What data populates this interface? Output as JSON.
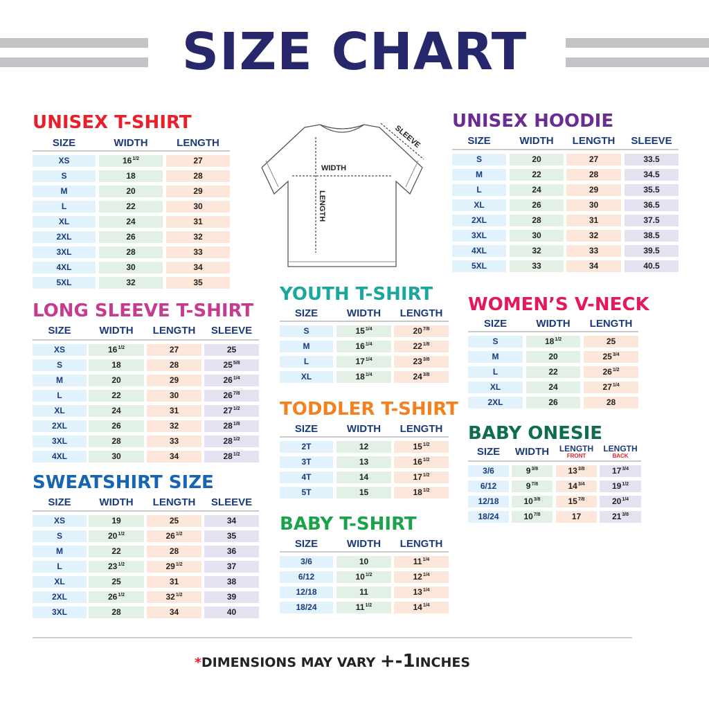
{
  "title": "SIZE CHART",
  "colors": {
    "title": "#27276b",
    "header": "#1b3a7a",
    "size_cell": "#e1f2fc",
    "width_cell": "#e2f0e6",
    "length_cell": "#fde6da",
    "sleeve_cell": "#e4e1f1"
  },
  "illustration": {
    "icon": "t-shirt-diagram",
    "width_label": "WIDTH",
    "length_label": "LENGTH",
    "sleeve_label": "SLEEVE"
  },
  "tables": [
    {
      "title": "UNISEX T-SHIRT",
      "color": "#e8202a",
      "columns": [
        {
          "label": "SIZE"
        },
        {
          "label": "WIDTH"
        },
        {
          "label": "LENGTH"
        }
      ],
      "rows": [
        [
          "XS",
          "16 1/2",
          "27"
        ],
        [
          "S",
          "18",
          "28"
        ],
        [
          "M",
          "20",
          "29"
        ],
        [
          "L",
          "22",
          "30"
        ],
        [
          "XL",
          "24",
          "31"
        ],
        [
          "2XL",
          "26",
          "32"
        ],
        [
          "3XL",
          "28",
          "33"
        ],
        [
          "4XL",
          "30",
          "34"
        ],
        [
          "5XL",
          "32",
          "35"
        ]
      ]
    },
    {
      "title": "LONG SLEEVE T-SHIRT",
      "color": "#c53b8e",
      "columns": [
        {
          "label": "SIZE"
        },
        {
          "label": "WIDTH"
        },
        {
          "label": "LENGTH"
        },
        {
          "label": "SLEEVE"
        }
      ],
      "rows": [
        [
          "XS",
          "16 1/2",
          "27",
          "25"
        ],
        [
          "S",
          "18",
          "28",
          "25 5/8"
        ],
        [
          "M",
          "20",
          "29",
          "26 1/4"
        ],
        [
          "L",
          "22",
          "30",
          "26 7/8"
        ],
        [
          "XL",
          "24",
          "31",
          "27 1/2"
        ],
        [
          "2XL",
          "26",
          "32",
          "28 1/8"
        ],
        [
          "3XL",
          "28",
          "33",
          "28 1/2"
        ],
        [
          "4XL",
          "30",
          "34",
          "28 1/2"
        ]
      ]
    },
    {
      "title": "SWEATSHIRT SIZE",
      "color": "#1565b0",
      "columns": [
        {
          "label": "SIZE"
        },
        {
          "label": "WIDTH"
        },
        {
          "label": "LENGTH"
        },
        {
          "label": "SLEEVE"
        }
      ],
      "rows": [
        [
          "XS",
          "19",
          "25",
          "34"
        ],
        [
          "S",
          "20 1/2",
          "26 1/2",
          "35"
        ],
        [
          "M",
          "22",
          "28",
          "36"
        ],
        [
          "L",
          "23 1/2",
          "29 1/2",
          "37"
        ],
        [
          "XL",
          "25",
          "31",
          "38"
        ],
        [
          "2XL",
          "26 1/2",
          "32 1/2",
          "39"
        ],
        [
          "3XL",
          "28",
          "34",
          "40"
        ]
      ]
    },
    {
      "title": "UNISEX HOODIE",
      "color": "#6a2c91",
      "columns": [
        {
          "label": "SIZE"
        },
        {
          "label": "WIDTH"
        },
        {
          "label": "LENGTH"
        },
        {
          "label": "SLEEVE"
        }
      ],
      "rows": [
        [
          "S",
          "20",
          "27",
          "33.5"
        ],
        [
          "M",
          "22",
          "28",
          "34.5"
        ],
        [
          "L",
          "24",
          "29",
          "35.5"
        ],
        [
          "XL",
          "26",
          "30",
          "36.5"
        ],
        [
          "2XL",
          "28",
          "31",
          "37.5"
        ],
        [
          "3XL",
          "30",
          "32",
          "38.5"
        ],
        [
          "4XL",
          "32",
          "33",
          "39.5"
        ],
        [
          "5XL",
          "33",
          "34",
          "40.5"
        ]
      ]
    },
    {
      "title": "YOUTH T-SHIRT",
      "color": "#1aa79c",
      "columns": [
        {
          "label": "SIZE"
        },
        {
          "label": "WIDTH"
        },
        {
          "label": "LENGTH"
        }
      ],
      "rows": [
        [
          "S",
          "15 1/4",
          "20 7/8"
        ],
        [
          "M",
          "16 1/4",
          "22 1/8"
        ],
        [
          "L",
          "17 1/4",
          "23 3/8"
        ],
        [
          "XL",
          "18 1/4",
          "24 3/8"
        ]
      ]
    },
    {
      "title": "TODDLER T-SHIRT",
      "color": "#f38120",
      "columns": [
        {
          "label": "SIZE"
        },
        {
          "label": "WIDTH"
        },
        {
          "label": "LENGTH"
        }
      ],
      "rows": [
        [
          "2T",
          "12",
          "15 1/2"
        ],
        [
          "3T",
          "13",
          "16 1/2"
        ],
        [
          "4T",
          "14",
          "17 1/2"
        ],
        [
          "5T",
          "15",
          "18 1/2"
        ]
      ]
    },
    {
      "title": "BABY T-SHIRT",
      "color": "#1aa34a",
      "columns": [
        {
          "label": "SIZE"
        },
        {
          "label": "WIDTH"
        },
        {
          "label": "LENGTH"
        }
      ],
      "rows": [
        [
          "3/6",
          "10",
          "11 1/4"
        ],
        [
          "6/12",
          "10 1/2",
          "12 1/4"
        ],
        [
          "12/18",
          "11",
          "13 1/4"
        ],
        [
          "18/24",
          "11 1/2",
          "14 1/4"
        ]
      ]
    },
    {
      "title": "WOMEN’S V-NECK",
      "color": "#e4185f",
      "columns": [
        {
          "label": "SIZE"
        },
        {
          "label": "WIDTH"
        },
        {
          "label": "LENGTH"
        }
      ],
      "rows": [
        [
          "S",
          "18 1/2",
          "25"
        ],
        [
          "M",
          "20",
          "25 3/4"
        ],
        [
          "L",
          "22",
          "26 1/2"
        ],
        [
          "XL",
          "24",
          "27 1/4"
        ],
        [
          "2XL",
          "26",
          "28"
        ]
      ]
    },
    {
      "title": "BABY ONESIE",
      "color": "#0f6e4a",
      "columns": [
        {
          "label": "SIZE"
        },
        {
          "label": "WIDTH"
        },
        {
          "label": "LENGTH",
          "sub": "FRONT"
        },
        {
          "label": "LENGTH",
          "sub": "BACK"
        }
      ],
      "rows": [
        [
          "3/6",
          "9 3/8",
          "13 3/8",
          "17 3/4"
        ],
        [
          "6/12",
          "9 7/8",
          "14 3/4",
          "19 1/2"
        ],
        [
          "12/18",
          "10 3/8",
          "15 7/8",
          "20 1/4"
        ],
        [
          "18/24",
          "10 7/8",
          "17",
          "21 3/8"
        ]
      ]
    }
  ],
  "footer": {
    "asterisk": "*",
    "text": "DIMENSIONS MAY VARY",
    "tolerance": "+-1",
    "unit": "INCHES"
  }
}
